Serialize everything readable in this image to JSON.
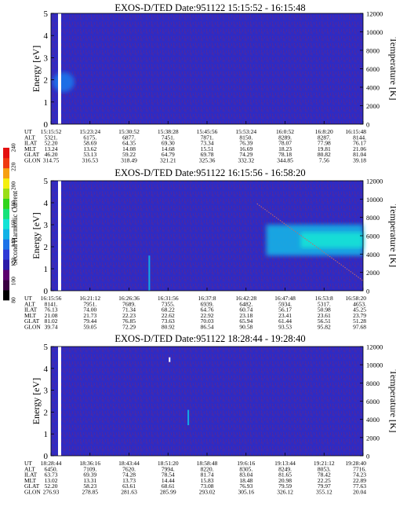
{
  "colorbar": {
    "label": "Second Harmonic Current",
    "ticks": [
      "80",
      "100",
      "120",
      "140",
      "160",
      "180",
      "200",
      "220",
      "240"
    ],
    "colors": [
      "#000000",
      "#3a0040",
      "#5c006e",
      "#2a1aa8",
      "#2f3ad6",
      "#1d72e8",
      "#12b2e6",
      "#13e3d6",
      "#16e27a",
      "#2fd41d",
      "#9ade16",
      "#f4ef10",
      "#f6a012",
      "#ef3a12",
      "#e41010"
    ]
  },
  "chart_data": [
    {
      "type": "heatmap",
      "title": "EXOS-D/TED   Date:951122   15:15:52 - 16:15:48",
      "ylabel": "Energy [eV]",
      "y2label": "Temperature [K]",
      "ylim": [
        0,
        5
      ],
      "y2lim": [
        0,
        12000
      ],
      "yticks": [
        "0",
        "1",
        "2",
        "3",
        "4",
        "5"
      ],
      "y2ticks": [
        "0",
        "2000",
        "4000",
        "6000",
        "8000",
        "10000",
        "12000"
      ],
      "colors": {
        "background": "#2e2bc4",
        "feature": "#1d72e8",
        "line": "#b0173f",
        "gap": "#ffffff"
      },
      "features": [
        {
          "kind": "blob",
          "x_frac": 0.04,
          "energy": 1.9,
          "energy_halfwidth": 0.45,
          "width_frac": 0.035
        }
      ],
      "orbit_rows": [
        {
          "label": "UT",
          "values": [
            "15:15:52",
            "15:23:24",
            "15:30:52",
            "15:38:28",
            "15:45:56",
            "15:53:24",
            "16:0:52",
            "16:8:20",
            "16:15:48"
          ]
        },
        {
          "label": "ALT",
          "values": [
            "5321.",
            "6175.",
            "6877.",
            "7451.",
            "7871.",
            "8150.",
            "8289.",
            "8287.",
            "8144."
          ]
        },
        {
          "label": "ILAT",
          "values": [
            "52.20",
            "58.69",
            "64.35",
            "69.30",
            "73.34",
            "76.39",
            "78.07",
            "77.98",
            "76.17"
          ]
        },
        {
          "label": "MLT",
          "values": [
            "13.24",
            "13.62",
            "14.08",
            "14.68",
            "15.51",
            "16.69",
            "18.23",
            "19.81",
            "21.06"
          ]
        },
        {
          "label": "GLAT",
          "values": [
            "46.20",
            "53.13",
            "59.22",
            "64.79",
            "69.78",
            "74.29",
            "78.18",
            "80.82",
            "81.04"
          ]
        },
        {
          "label": "GLON",
          "values": [
            "314.75",
            "316.53",
            "318.49",
            "321.21",
            "325.36",
            "332.32",
            "344.85",
            "7.56",
            "39.18"
          ]
        }
      ]
    },
    {
      "type": "heatmap",
      "title": "EXOS-D/TED   Date:951122   16:15:56 - 16:58:20",
      "ylabel": "Energy [eV]",
      "y2label": "Temperature [K]",
      "ylim": [
        0,
        5
      ],
      "y2lim": [
        0,
        12000
      ],
      "yticks": [
        "0",
        "1",
        "2",
        "3",
        "4",
        "5"
      ],
      "y2ticks": [
        "0",
        "2000",
        "4000",
        "6000",
        "8000",
        "10000",
        "12000"
      ],
      "colors": {
        "background": "#2e2bc4",
        "feature": "#12b2e6",
        "feature_core": "#13e3d6",
        "line": "#c46a6a",
        "gap": "#ffffff"
      },
      "features": [
        {
          "kind": "band",
          "x_start_frac": 0.68,
          "x_end_frac": 1.0,
          "energy_low": 1.6,
          "energy_high": 3.0
        },
        {
          "kind": "spike",
          "x_frac": 0.315,
          "energy_low": 0,
          "energy_high": 1.6
        }
      ],
      "orbit_rows": [
        {
          "label": "UT",
          "values": [
            "16:15:56",
            "16:21:12",
            "16:26:36",
            "16:31:56",
            "16:37:8",
            "16:42:28",
            "16:47:48",
            "16:53:8",
            "16:58:20"
          ]
        },
        {
          "label": "ALT",
          "values": [
            "8141.",
            "7951.",
            "7689.",
            "7355.",
            "6939.",
            "6482.",
            "5934.",
            "5317.",
            "4653."
          ]
        },
        {
          "label": "ILAT",
          "values": [
            "76.13",
            "74.00",
            "71.34",
            "68.22",
            "64.76",
            "60.74",
            "56.17",
            "50.98",
            "45.25"
          ]
        },
        {
          "label": "MLT",
          "values": [
            "21.08",
            "21.73",
            "22.23",
            "22.62",
            "22.92",
            "23.18",
            "23.41",
            "23.61",
            "23.79"
          ]
        },
        {
          "label": "GLAT",
          "values": [
            "81.02",
            "79.44",
            "76.85",
            "73.63",
            "70.03",
            "65.94",
            "61.44",
            "56.51",
            "51.28"
          ]
        },
        {
          "label": "GLON",
          "values": [
            "39.74",
            "59.05",
            "72.29",
            "80.92",
            "86.54",
            "90.58",
            "93.53",
            "95.82",
            "97.68"
          ]
        }
      ]
    },
    {
      "type": "heatmap",
      "title": "EXOS-D/TED   Date:951122   18:28:44 - 19:28:40",
      "ylabel": "Energy [eV]",
      "y2label": "Temperature [K]",
      "ylim": [
        0,
        5
      ],
      "y2lim": [
        0,
        12000
      ],
      "yticks": [
        "0",
        "1",
        "2",
        "3",
        "4",
        "5"
      ],
      "y2ticks": [
        "0",
        "2000",
        "4000",
        "6000",
        "8000",
        "10000",
        "12000"
      ],
      "colors": {
        "background": "#2e2bc4",
        "feature": "#12b2e6",
        "line": "#b0173f",
        "gap": "#ffffff"
      },
      "features": [
        {
          "kind": "spike",
          "x_frac": 0.44,
          "energy_low": 1.4,
          "energy_high": 2.1
        },
        {
          "kind": "dot",
          "x_frac": 0.38,
          "energy": 4.4
        }
      ],
      "orbit_rows": [
        {
          "label": "UT",
          "values": [
            "18:28:44",
            "18:36:16",
            "18:43:44",
            "18:51:20",
            "18:58:48",
            "19:6:16",
            "19:13:44",
            "19:21:12",
            "19:28:40"
          ]
        },
        {
          "label": "ALT",
          "values": [
            "6450.",
            "7109.",
            "7620.",
            "7994.",
            "8220.",
            "8305.",
            "8249.",
            "8053.",
            "7716."
          ]
        },
        {
          "label": "ILAT",
          "values": [
            "63.73",
            "69.39",
            "74.28",
            "78.54",
            "81.74",
            "83.04",
            "81.65",
            "78.42",
            "74.23"
          ]
        },
        {
          "label": "MLT",
          "values": [
            "13.02",
            "13.31",
            "13.73",
            "14.44",
            "15.83",
            "18.48",
            "20.98",
            "22.25",
            "22.89"
          ]
        },
        {
          "label": "GLAT",
          "values": [
            "52.20",
            "58.23",
            "63.61",
            "68.61",
            "73.08",
            "76.93",
            "79.59",
            "79.97",
            "77.63"
          ]
        },
        {
          "label": "GLON",
          "values": [
            "276.93",
            "278.85",
            "281.63",
            "285.99",
            "293.02",
            "305.16",
            "326.12",
            "355.12",
            "20.04"
          ]
        }
      ]
    }
  ]
}
